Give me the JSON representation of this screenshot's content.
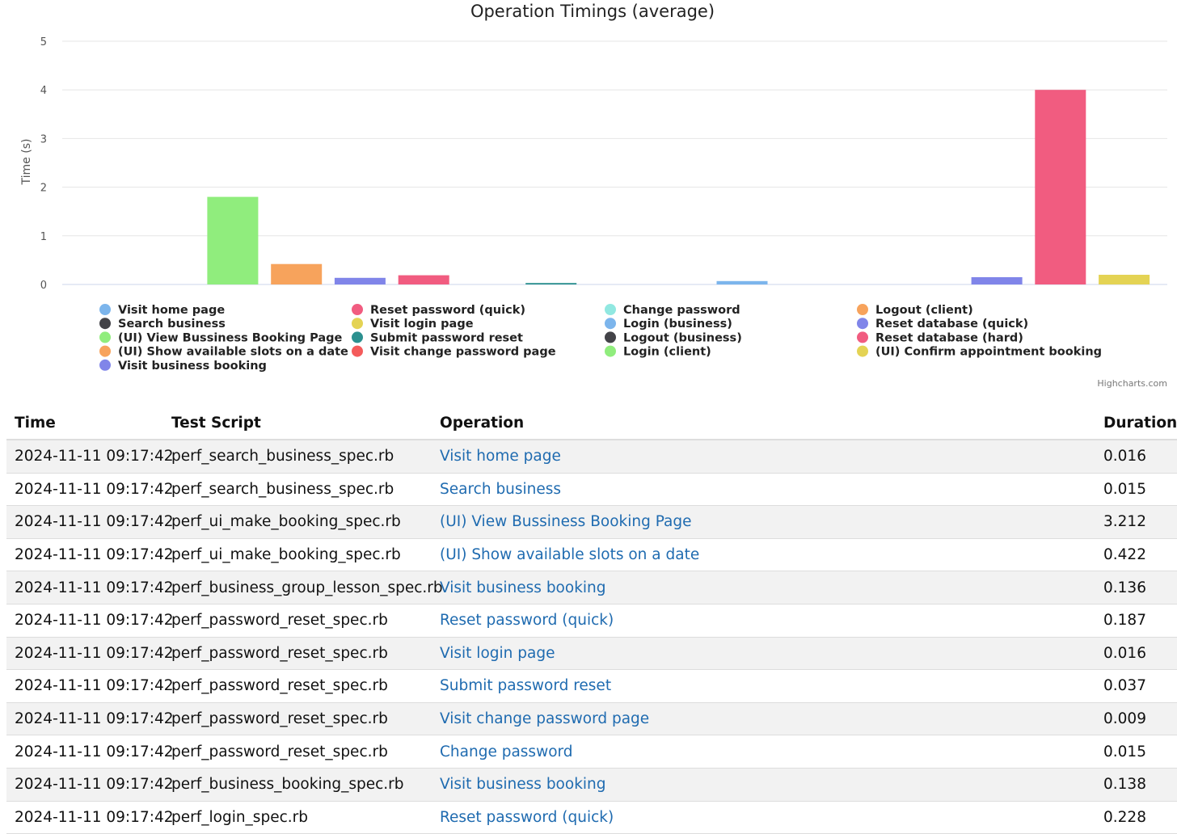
{
  "chart_data": {
    "type": "bar",
    "title": "Operation Timings (average)",
    "ylabel": "Time (s)",
    "ylim": [
      0,
      5
    ],
    "yticks": [
      0,
      1,
      2,
      3,
      4,
      5
    ],
    "legend_position": "bottom",
    "grid": true,
    "series": [
      {
        "name": "Visit home page",
        "value": 0.0,
        "color": "#7cb5ec"
      },
      {
        "name": "Search business",
        "value": 0.0,
        "color": "#434348"
      },
      {
        "name": "(UI) View Bussiness Booking Page",
        "value": 1.8,
        "color": "#90ed7d"
      },
      {
        "name": "(UI) Show available slots on a date",
        "value": 0.42,
        "color": "#f7a35c"
      },
      {
        "name": "Visit business booking",
        "value": 0.137,
        "color": "#8085e9"
      },
      {
        "name": "Reset password (quick)",
        "value": 0.19,
        "color": "#f15c80"
      },
      {
        "name": "Visit login page",
        "value": 0.0,
        "color": "#e4d354"
      },
      {
        "name": "Submit password reset",
        "value": 0.03,
        "color": "#2b908f"
      },
      {
        "name": "Visit change password page",
        "value": 0.0,
        "color": "#f45b5b"
      },
      {
        "name": "Change password",
        "value": 0.0,
        "color": "#91e8e1"
      },
      {
        "name": "Login (business)",
        "value": 0.07,
        "color": "#7cb5ec"
      },
      {
        "name": "Logout (business)",
        "value": 0.0,
        "color": "#434348"
      },
      {
        "name": "Login (client)",
        "value": 0.0,
        "color": "#90ed7d"
      },
      {
        "name": "Logout (client)",
        "value": 0.0,
        "color": "#f7a35c"
      },
      {
        "name": "Reset database (quick)",
        "value": 0.15,
        "color": "#8085e9"
      },
      {
        "name": "Reset database (hard)",
        "value": 4.0,
        "color": "#f15c80"
      },
      {
        "name": "(UI) Confirm appointment booking",
        "value": 0.2,
        "color": "#e4d354"
      }
    ],
    "credits": "Highcharts.com"
  },
  "table": {
    "headers": {
      "time": "Time",
      "script": "Test Script",
      "operation": "Operation",
      "duration": "Duration"
    },
    "rows": [
      {
        "time": "2024-11-11 09:17:42",
        "script": "perf_search_business_spec.rb",
        "operation": "Visit home page",
        "duration": "0.016"
      },
      {
        "time": "2024-11-11 09:17:42",
        "script": "perf_search_business_spec.rb",
        "operation": "Search business",
        "duration": "0.015"
      },
      {
        "time": "2024-11-11 09:17:42",
        "script": "perf_ui_make_booking_spec.rb",
        "operation": "(UI) View Bussiness Booking Page",
        "duration": "3.212"
      },
      {
        "time": "2024-11-11 09:17:42",
        "script": "perf_ui_make_booking_spec.rb",
        "operation": "(UI) Show available slots on a date",
        "duration": "0.422"
      },
      {
        "time": "2024-11-11 09:17:42",
        "script": "perf_business_group_lesson_spec.rb",
        "operation": "Visit business booking",
        "duration": "0.136"
      },
      {
        "time": "2024-11-11 09:17:42",
        "script": "perf_password_reset_spec.rb",
        "operation": "Reset password (quick)",
        "duration": "0.187"
      },
      {
        "time": "2024-11-11 09:17:42",
        "script": "perf_password_reset_spec.rb",
        "operation": "Visit login page",
        "duration": "0.016"
      },
      {
        "time": "2024-11-11 09:17:42",
        "script": "perf_password_reset_spec.rb",
        "operation": "Submit password reset",
        "duration": "0.037"
      },
      {
        "time": "2024-11-11 09:17:42",
        "script": "perf_password_reset_spec.rb",
        "operation": "Visit change password page",
        "duration": "0.009"
      },
      {
        "time": "2024-11-11 09:17:42",
        "script": "perf_password_reset_spec.rb",
        "operation": "Change password",
        "duration": "0.015"
      },
      {
        "time": "2024-11-11 09:17:42",
        "script": "perf_business_booking_spec.rb",
        "operation": "Visit business booking",
        "duration": "0.138"
      },
      {
        "time": "2024-11-11 09:17:42",
        "script": "perf_login_spec.rb",
        "operation": "Reset password (quick)",
        "duration": "0.228"
      }
    ]
  }
}
